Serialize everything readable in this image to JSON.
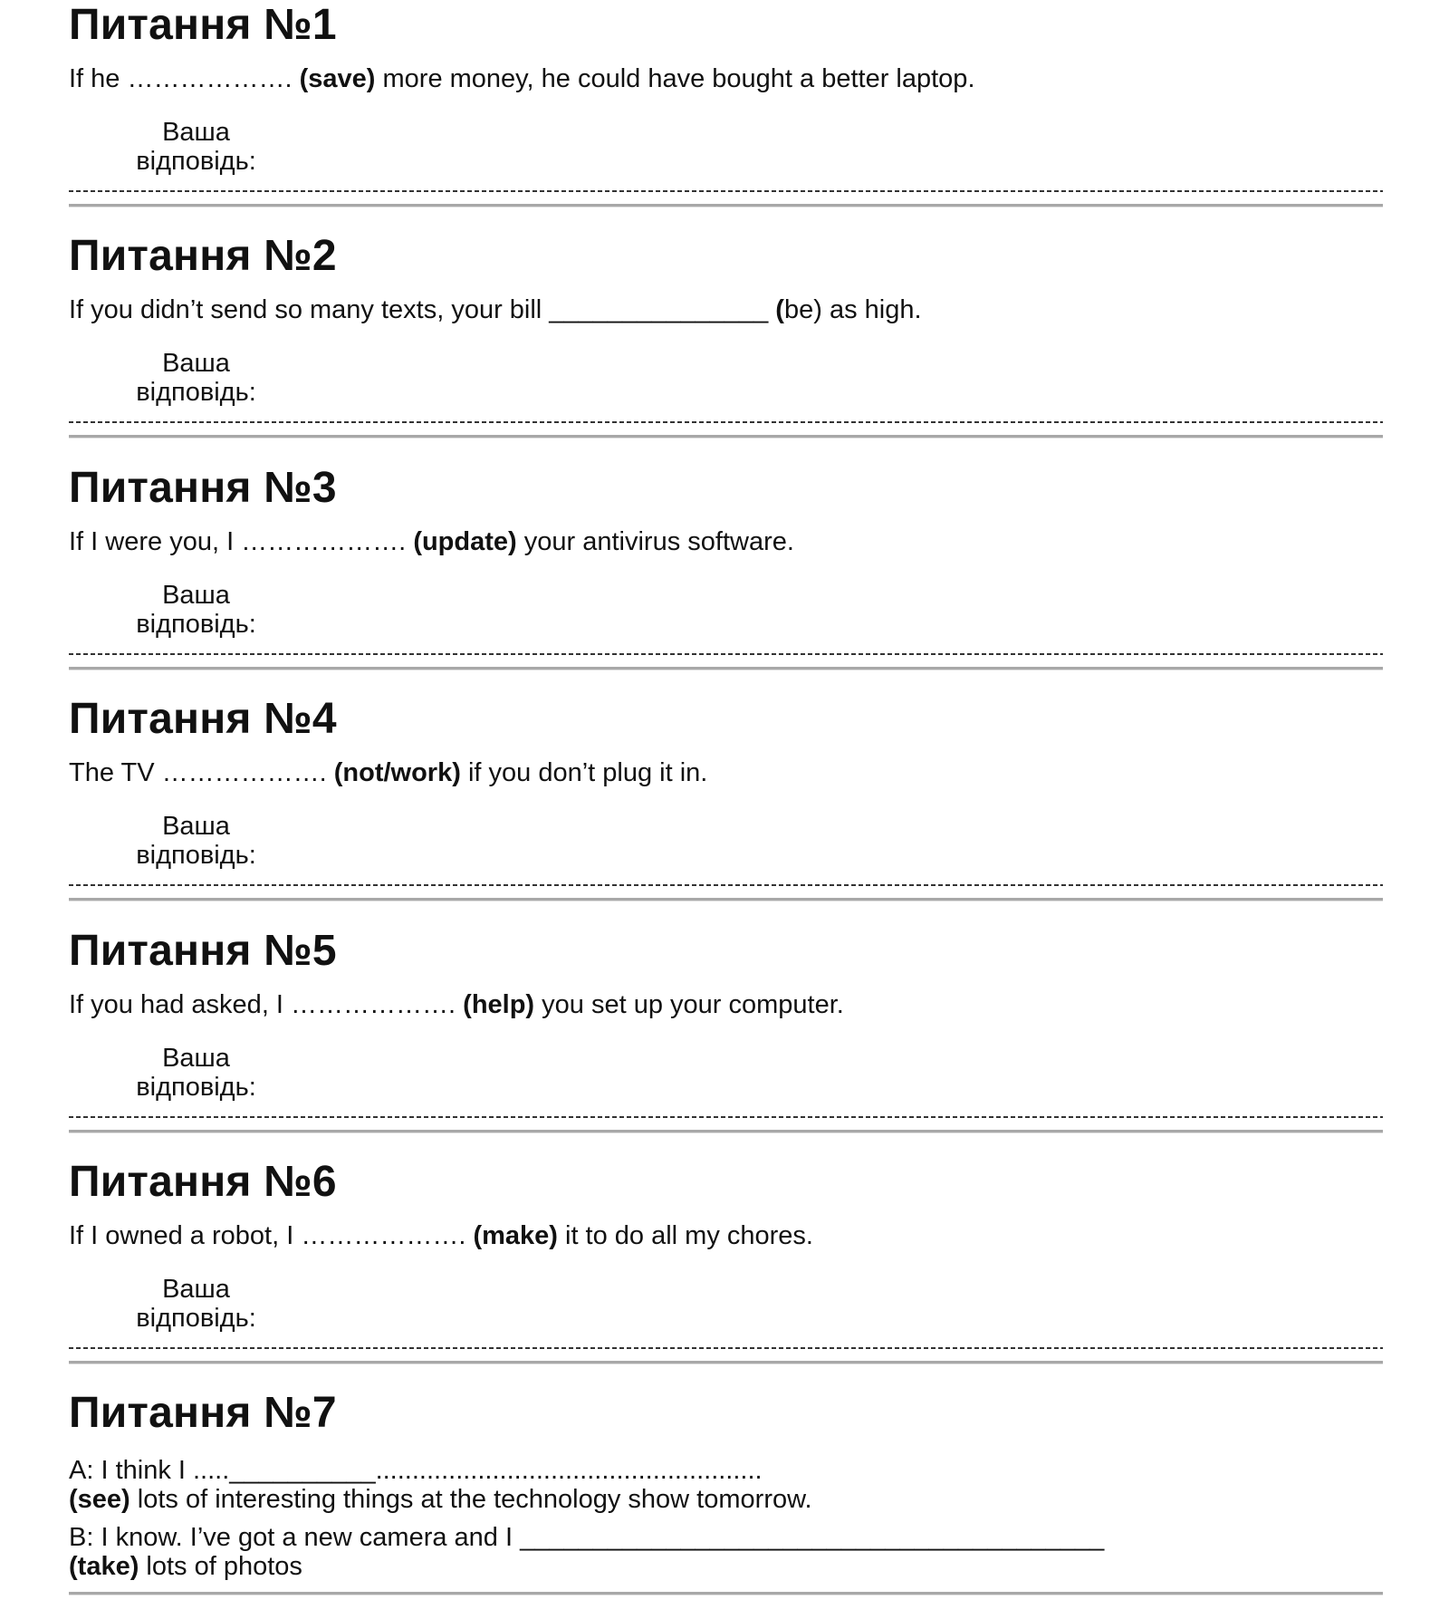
{
  "answer_label_line1": "Ваша",
  "answer_label_line2": "відповідь:",
  "questions": [
    {
      "title": "Питання №1",
      "parts": [
        {
          "t": "If he ………………. "
        },
        {
          "t": "(save)",
          "b": true
        },
        {
          "t": " more money, he could have bought a better laptop."
        }
      ]
    },
    {
      "title": "Питання №2",
      "parts": [
        {
          "t": "If you didn’t send so many texts, your bill _______________ "
        },
        {
          "t": "(",
          "b": true
        },
        {
          "t": "be) as high."
        }
      ]
    },
    {
      "title": "Питання №3",
      "parts": [
        {
          "t": "If I were you, I ………………. "
        },
        {
          "t": "(update)",
          "b": true
        },
        {
          "t": " your antivirus software."
        }
      ]
    },
    {
      "title": "Питання №4",
      "parts": [
        {
          "t": "The TV ………………. "
        },
        {
          "t": "(not/work)",
          "b": true
        },
        {
          "t": " if you don’t plug it in."
        }
      ]
    },
    {
      "title": "Питання №5",
      "parts": [
        {
          "t": "If you had asked, I ………………. "
        },
        {
          "t": "(help)",
          "b": true
        },
        {
          "t": " you set up your computer."
        }
      ]
    },
    {
      "title": "Питання №6",
      "parts": [
        {
          "t": "If I owned a robot, I ………………. "
        },
        {
          "t": "(make)",
          "b": true
        },
        {
          "t": " it to do all my chores."
        }
      ]
    }
  ],
  "question7": {
    "title": "Питання №7",
    "lines": [
      [
        {
          "t": "A: I think I .....__________....................................................."
        }
      ],
      [
        {
          "t": "(see)",
          "b": true
        },
        {
          "t": " lots of interesting things at the technology show tomorrow."
        }
      ],
      [
        {
          "t": "B: I know. I’ve got a new camera and I ________________________________________"
        }
      ],
      [
        {
          "t": "(take)",
          "b": true
        },
        {
          "t": " lots of photos"
        }
      ]
    ]
  }
}
